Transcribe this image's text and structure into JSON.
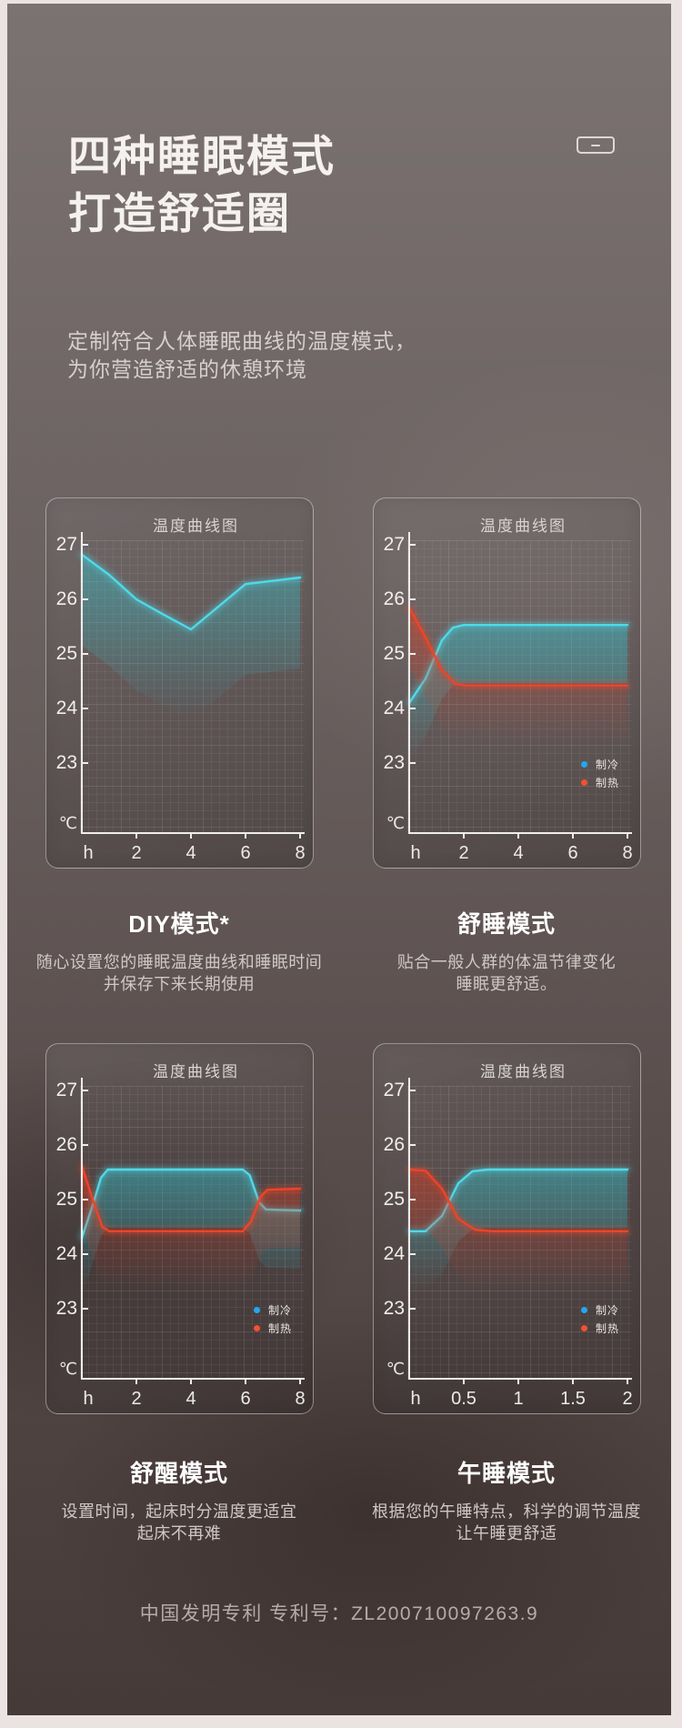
{
  "page": {
    "title_lines": [
      "四种睡眠模式",
      "打造舒适圈"
    ],
    "subtitle_lines": [
      "定制符合人体睡眠曲线的温度模式，",
      "为你营造舒适的休憩环境"
    ],
    "footer_patent": "中国发明专利  专利号：ZL200710097263.9"
  },
  "colors": {
    "cool_line": "#4fd9e8",
    "heat_line": "#ef4328",
    "cool_fill": "#2fc4cf",
    "heat_fill": "#e03a20",
    "legend_cool_dot": "#22a7f2",
    "legend_heat_dot": "#f4502e",
    "axis": "#efecea"
  },
  "modes": [
    {
      "title": "DIY模式*",
      "desc": [
        "随心设置您的睡眠温度曲线和睡眠时间",
        "并保存下来长期使用"
      ]
    },
    {
      "title": "舒睡模式",
      "desc": [
        "贴合一般人群的体温节律变化",
        "睡眠更舒适。"
      ]
    },
    {
      "title": "舒醒模式",
      "desc": [
        "设置时间，起床时分温度更适宜",
        "起床不再难"
      ]
    },
    {
      "title": "午睡模式",
      "desc": [
        "根据您的午睡特点，科学的调节温度",
        "让午睡更舒适"
      ]
    }
  ],
  "chart_data": [
    {
      "type": "line",
      "title": "温度曲线图",
      "xlabel": "h",
      "ylabel": "℃",
      "ylim": [
        23,
        27
      ],
      "yticks": [
        27,
        26,
        25,
        24,
        23
      ],
      "xlim": [
        0,
        8
      ],
      "xticks": [
        "2",
        "4",
        "6",
        "8"
      ],
      "grid": true,
      "legend": false,
      "fill_depth": 100,
      "series": [
        {
          "name": "",
          "role": "cool",
          "points": [
            [
              0,
              26.82
            ],
            [
              1,
              26.45
            ],
            [
              2,
              26.0
            ],
            [
              3,
              25.72
            ],
            [
              4,
              25.45
            ],
            [
              6,
              26.28
            ],
            [
              8,
              26.4
            ]
          ]
        }
      ]
    },
    {
      "type": "line",
      "title": "温度曲线图",
      "xlabel": "h",
      "ylabel": "℃",
      "ylim": [
        23,
        27
      ],
      "yticks": [
        27,
        26,
        25,
        24,
        23
      ],
      "xlim": [
        0,
        8
      ],
      "xticks": [
        "2",
        "4",
        "6",
        "8"
      ],
      "grid": true,
      "legend": true,
      "fill_depth": 64,
      "series": [
        {
          "name": "制冷",
          "role": "cool",
          "points": [
            [
              0,
              24.1
            ],
            [
              0.6,
              24.55
            ],
            [
              1.2,
              25.25
            ],
            [
              1.6,
              25.48
            ],
            [
              2,
              25.53
            ],
            [
              8,
              25.53
            ]
          ]
        },
        {
          "name": "制热",
          "role": "heat",
          "points": [
            [
              0,
              25.85
            ],
            [
              0.6,
              25.3
            ],
            [
              1.2,
              24.7
            ],
            [
              1.7,
              24.45
            ],
            [
              2.1,
              24.42
            ],
            [
              8,
              24.42
            ]
          ]
        }
      ]
    },
    {
      "type": "line",
      "title": "温度曲线图",
      "xlabel": "h",
      "ylabel": "℃",
      "ylim": [
        23,
        27
      ],
      "yticks": [
        27,
        26,
        25,
        24,
        23
      ],
      "xlim": [
        0,
        8
      ],
      "xticks": [
        "2",
        "4",
        "6",
        "8"
      ],
      "grid": true,
      "legend": true,
      "fill_depth": 64,
      "series": [
        {
          "name": "制冷",
          "role": "cool",
          "points": [
            [
              0,
              24.3
            ],
            [
              0.4,
              24.9
            ],
            [
              0.7,
              25.4
            ],
            [
              0.95,
              25.55
            ],
            [
              5.9,
              25.55
            ],
            [
              6.15,
              25.45
            ],
            [
              6.5,
              24.95
            ],
            [
              6.75,
              24.82
            ],
            [
              8,
              24.8
            ]
          ]
        },
        {
          "name": "制热",
          "role": "heat",
          "points": [
            [
              0,
              25.62
            ],
            [
              0.4,
              25.0
            ],
            [
              0.75,
              24.5
            ],
            [
              1,
              24.42
            ],
            [
              5.9,
              24.42
            ],
            [
              6.2,
              24.6
            ],
            [
              6.55,
              25.05
            ],
            [
              6.8,
              25.18
            ],
            [
              8,
              25.2
            ]
          ]
        }
      ]
    },
    {
      "type": "line",
      "title": "温度曲线图",
      "xlabel": "h",
      "ylabel": "℃",
      "ylim": [
        23,
        27
      ],
      "yticks": [
        27,
        26,
        25,
        24,
        23
      ],
      "xlim": [
        0,
        2
      ],
      "xticks": [
        "0.5",
        "1",
        "1.5",
        "2"
      ],
      "grid": true,
      "legend": true,
      "fill_depth": 64,
      "series": [
        {
          "name": "制冷",
          "role": "cool",
          "points": [
            [
              0,
              24.42
            ],
            [
              0.15,
              24.42
            ],
            [
              0.3,
              24.7
            ],
            [
              0.45,
              25.3
            ],
            [
              0.58,
              25.52
            ],
            [
              0.72,
              25.55
            ],
            [
              2,
              25.55
            ]
          ]
        },
        {
          "name": "制热",
          "role": "heat",
          "points": [
            [
              0,
              25.55
            ],
            [
              0.15,
              25.53
            ],
            [
              0.3,
              25.2
            ],
            [
              0.45,
              24.65
            ],
            [
              0.6,
              24.45
            ],
            [
              0.75,
              24.42
            ],
            [
              2,
              24.42
            ]
          ]
        }
      ]
    }
  ]
}
